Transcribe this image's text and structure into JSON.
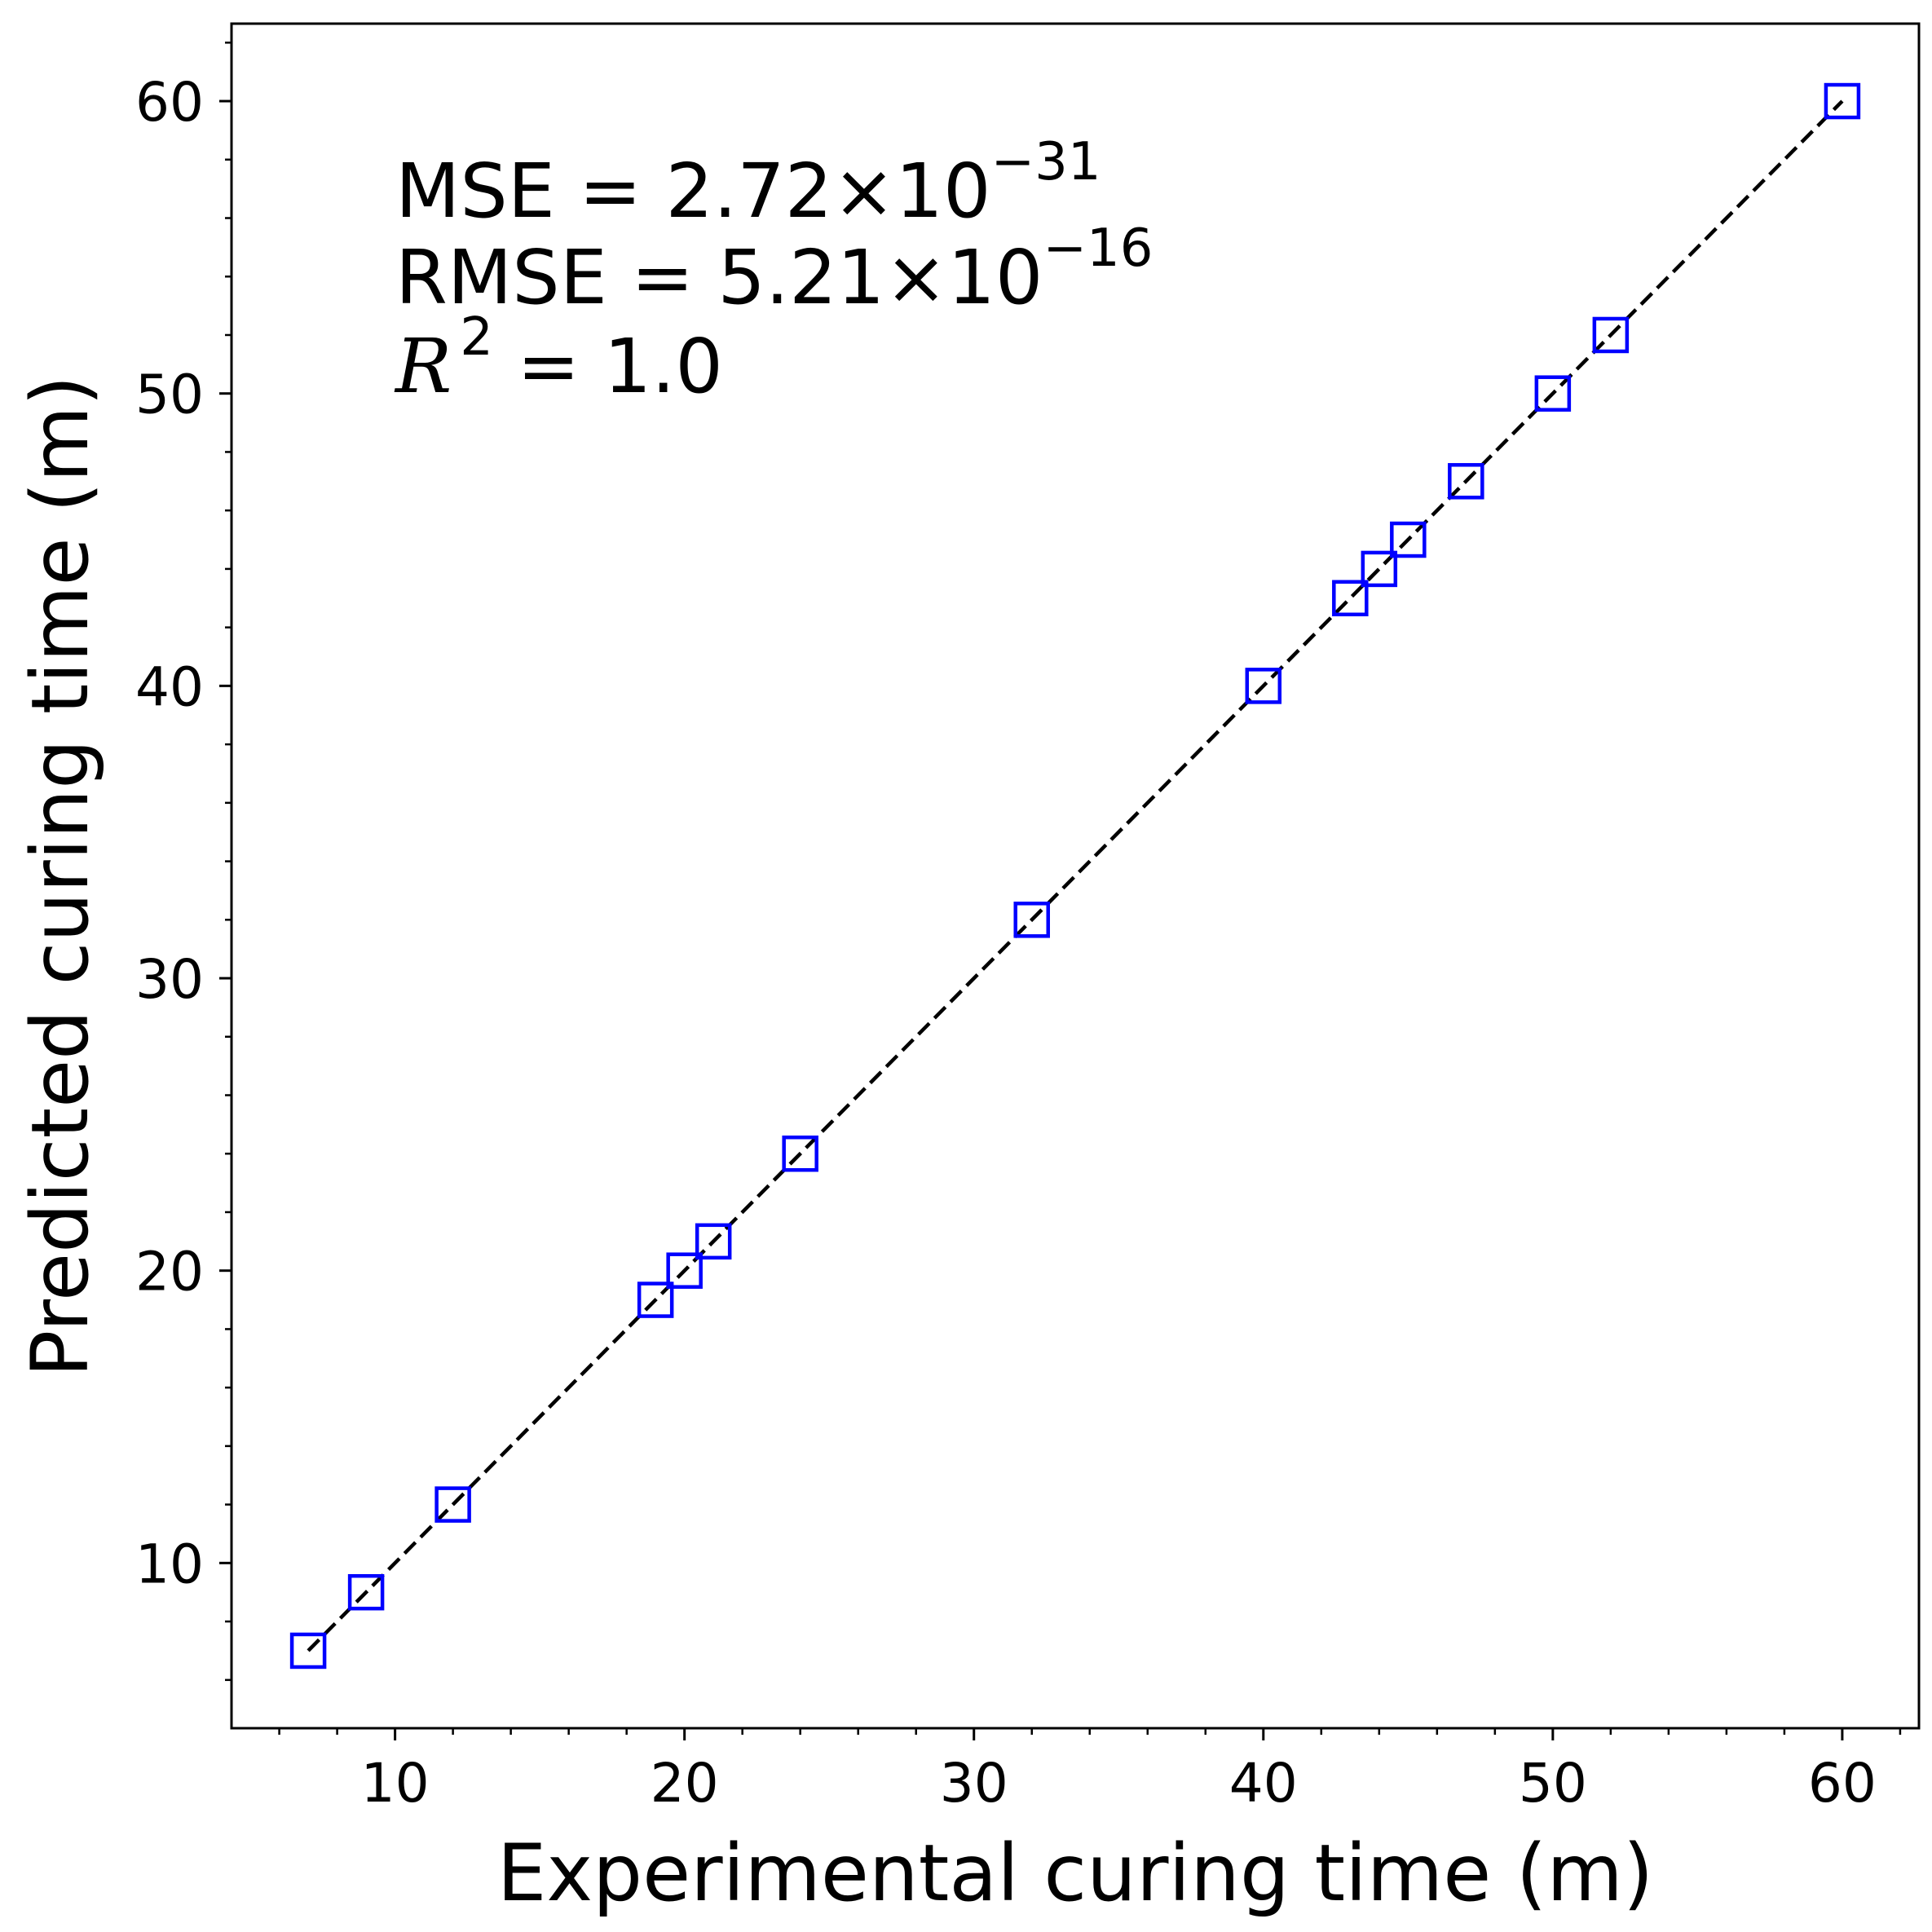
{
  "chart_data": {
    "type": "scatter",
    "xlabel": "Experimental curing time (m)",
    "ylabel": "Predicted curing time (m)",
    "xlim": [
      4.35,
      62.65
    ],
    "ylim": [
      4.35,
      62.65
    ],
    "xticks": [
      10,
      20,
      30,
      40,
      50,
      60
    ],
    "yticks": [
      10,
      20,
      30,
      40,
      50,
      60
    ],
    "minor_tick_step": 2,
    "grid": false,
    "marker": "square-open",
    "marker_color": "#0000ff",
    "reference_line": {
      "style": "dashed",
      "color": "#000000",
      "x": [
        7,
        60
      ],
      "y": [
        7,
        60
      ]
    },
    "series": [
      {
        "x": [
          7,
          9,
          12,
          19,
          20,
          21,
          24,
          32,
          40,
          43,
          44,
          45,
          47,
          50,
          52,
          60
        ],
        "y": [
          7,
          9,
          12,
          19,
          20,
          21,
          24,
          32,
          40,
          43,
          44,
          45,
          47,
          50,
          52,
          60
        ]
      }
    ],
    "annotations": {
      "mse_prefix": "MSE = 2.72×10",
      "mse_exp": "−31",
      "rmse_prefix": "RMSE = 5.21×10",
      "rmse_exp": "−16",
      "r2_symbol": "R",
      "r2_exp": "2",
      "r2_value": " = 1.0"
    }
  }
}
